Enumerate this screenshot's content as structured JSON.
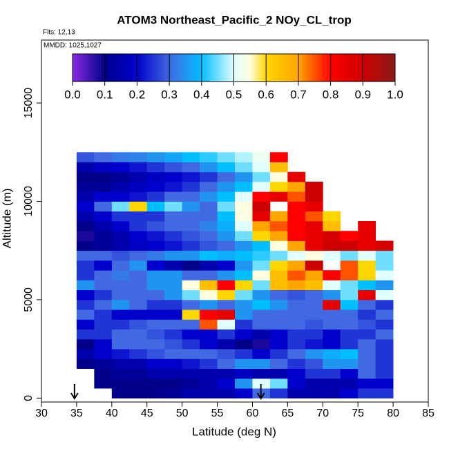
{
  "chart_data": {
    "type": "heatmap",
    "title": "ATOM3 Northeast_Pacific_2 NOy_CL_trop",
    "subtitle": "Flts: 12,13",
    "annotation": "MMDD: 1025,1027",
    "xlabel": "Latitude (deg N)",
    "ylabel": "Altitude (m)",
    "xlim": [
      30,
      85
    ],
    "ylim": [
      -200,
      18200
    ],
    "xticks": [
      30,
      35,
      40,
      45,
      50,
      55,
      60,
      65,
      70,
      75,
      80,
      85
    ],
    "yticks": [
      0,
      5000,
      10000,
      15000
    ],
    "xbins": [
      35,
      37.5,
      40,
      42.5,
      45,
      47.5,
      50,
      52.5,
      55,
      57.5,
      60,
      62.5,
      65,
      67.5,
      70,
      72.5,
      75,
      77.5,
      80
    ],
    "ybins": [
      0,
      500,
      1000,
      1500,
      2000,
      2500,
      3000,
      3500,
      4000,
      4500,
      5000,
      5500,
      6000,
      6500,
      7000,
      7500,
      8000,
      8500,
      9000,
      9500,
      10000,
      10500,
      11000,
      11500,
      12000,
      12500
    ],
    "values": [
      [
        null,
        null,
        0.1,
        0.1,
        0.1,
        0.12,
        0.15,
        0.15,
        0.15,
        0.2,
        0.3,
        0.25,
        0.15,
        0.15,
        0.15,
        0.2,
        0.25,
        0.25
      ],
      [
        null,
        0.1,
        0.1,
        0.1,
        0.1,
        0.1,
        0.12,
        0.15,
        0.2,
        0.35,
        0.5,
        0.45,
        0.2,
        0.15,
        0.15,
        0.15,
        0.2,
        0.2
      ],
      [
        null,
        0.1,
        0.12,
        0.12,
        0.15,
        0.15,
        0.15,
        0.15,
        0.15,
        0.18,
        0.15,
        0.15,
        0.2,
        0.25,
        0.25,
        0.2,
        0.3,
        0.25
      ],
      [
        0.1,
        0.12,
        0.15,
        0.15,
        0.2,
        0.2,
        0.22,
        0.25,
        0.3,
        0.35,
        0.35,
        0.3,
        0.25,
        0.28,
        0.35,
        0.35,
        0.3,
        0.25
      ],
      [
        0.15,
        0.2,
        0.22,
        0.25,
        0.28,
        0.3,
        0.3,
        0.3,
        0.28,
        0.25,
        0.2,
        0.25,
        0.3,
        0.35,
        0.38,
        0.4,
        0.3,
        0.25
      ],
      [
        0.1,
        0.2,
        0.3,
        0.3,
        0.3,
        0.28,
        0.25,
        0.2,
        0.15,
        0.1,
        0.08,
        0.2,
        0.25,
        0.22,
        0.2,
        0.25,
        0.3,
        0.25
      ],
      [
        0.25,
        0.25,
        0.3,
        0.3,
        0.28,
        0.25,
        0.2,
        0.2,
        0.25,
        0.2,
        0.15,
        0.2,
        0.25,
        0.25,
        0.2,
        0.25,
        0.25,
        0.3
      ],
      [
        0.2,
        0.25,
        0.25,
        0.28,
        0.3,
        0.3,
        0.3,
        0.75,
        0.5,
        0.25,
        0.3,
        0.3,
        0.3,
        0.28,
        0.3,
        0.3,
        0.28,
        0.25
      ],
      [
        0.3,
        0.25,
        0.2,
        0.2,
        0.2,
        0.2,
        0.6,
        0.8,
        0.85,
        0.35,
        0.3,
        0.3,
        0.3,
        0.3,
        0.3,
        0.3,
        0.25,
        0.3
      ],
      [
        0.25,
        0.3,
        0.35,
        0.3,
        0.25,
        0.25,
        0.3,
        0.35,
        0.3,
        0.35,
        0.4,
        0.35,
        0.3,
        0.3,
        0.85,
        0.4,
        0.3,
        0.25
      ],
      [
        0.2,
        0.25,
        0.3,
        0.3,
        0.3,
        0.35,
        0.45,
        0.55,
        0.6,
        0.45,
        0.35,
        0.3,
        0.28,
        0.3,
        0.35,
        0.45,
        0.85,
        0.5
      ],
      [
        0.35,
        0.3,
        0.3,
        0.3,
        0.35,
        0.35,
        0.55,
        0.65,
        0.8,
        0.6,
        0.45,
        0.65,
        0.7,
        0.65,
        0.5,
        0.45,
        0.4,
        0.35
      ],
      [
        0.25,
        0.3,
        0.32,
        0.3,
        0.35,
        0.35,
        0.3,
        0.3,
        0.35,
        0.4,
        0.55,
        0.65,
        0.75,
        0.7,
        0.8,
        0.75,
        0.6,
        0.5
      ],
      [
        0.25,
        0.2,
        0.3,
        0.35,
        0.2,
        0.15,
        0.1,
        0.15,
        0.2,
        0.35,
        0.45,
        0.6,
        0.7,
        0.9,
        null,
        0.75,
        0.6,
        0.45
      ],
      [
        0.3,
        0.3,
        0.28,
        0.3,
        0.32,
        0.35,
        0.35,
        0.4,
        0.38,
        0.4,
        0.42,
        0.45,
        0.5,
        0.55,
        0.5,
        0.45,
        0.5,
        0.45
      ],
      [
        0.1,
        0.12,
        0.15,
        0.18,
        0.2,
        0.22,
        0.25,
        0.28,
        0.3,
        0.35,
        0.4,
        0.55,
        0.7,
        0.85,
        0.9,
        0.9,
        0.85,
        0.88
      ],
      [
        0.08,
        0.12,
        0.15,
        0.2,
        0.22,
        0.25,
        0.28,
        0.3,
        0.35,
        0.45,
        0.6,
        0.7,
        0.8,
        0.85,
        0.88,
        0.8,
        0.85,
        null
      ],
      [
        0.1,
        0.15,
        0.2,
        0.25,
        0.28,
        0.3,
        0.3,
        0.33,
        0.38,
        0.5,
        0.7,
        0.75,
        0.8,
        0.85,
        0.65,
        null,
        0.85,
        null
      ],
      [
        0.15,
        0.2,
        0.25,
        0.25,
        0.25,
        0.3,
        0.3,
        0.3,
        0.4,
        0.55,
        0.85,
        0.7,
        0.8,
        0.75,
        0.6,
        null,
        null,
        null
      ],
      [
        0.2,
        0.3,
        0.45,
        0.6,
        0.4,
        0.45,
        0.35,
        0.3,
        0.45,
        0.55,
        0.9,
        null,
        0.8,
        0.85,
        null,
        null,
        null,
        null
      ],
      [
        0.15,
        0.2,
        0.2,
        0.22,
        0.25,
        0.3,
        0.3,
        0.35,
        0.4,
        0.5,
        0.8,
        0.85,
        0.75,
        0.9,
        null,
        null,
        null,
        null
      ],
      [
        0.12,
        0.12,
        0.15,
        0.18,
        0.2,
        0.22,
        0.25,
        0.3,
        0.35,
        0.4,
        0.5,
        0.6,
        0.7,
        0.9,
        null,
        null,
        null,
        null
      ],
      [
        0.1,
        0.1,
        0.12,
        0.15,
        0.18,
        0.2,
        0.22,
        0.25,
        0.3,
        0.35,
        0.45,
        0.55,
        0.85,
        null,
        null,
        null,
        null,
        null
      ],
      [
        0.15,
        0.18,
        0.2,
        0.22,
        0.25,
        0.28,
        0.3,
        0.35,
        0.4,
        0.45,
        0.5,
        0.65,
        null,
        null,
        null,
        null,
        null,
        null
      ],
      [
        0.28,
        0.3,
        0.32,
        0.33,
        0.35,
        0.37,
        0.4,
        0.42,
        0.45,
        0.48,
        0.52,
        0.8,
        null,
        null,
        null,
        null,
        null,
        null
      ]
    ],
    "colorscale": [
      [
        0,
        "#8a2be2"
      ],
      [
        0.1,
        "#00008b"
      ],
      [
        0.2,
        "#0000cd"
      ],
      [
        0.3,
        "#4169e1"
      ],
      [
        0.4,
        "#00bfff"
      ],
      [
        0.5,
        "#e0ffff"
      ],
      [
        0.55,
        "#ffffe0"
      ],
      [
        0.6,
        "#ffd700"
      ],
      [
        0.7,
        "#ffa500"
      ],
      [
        0.8,
        "#ff0000"
      ],
      [
        0.9,
        "#cd0000"
      ],
      [
        1.0,
        "#8b1a1a"
      ]
    ],
    "colorbar_ticks": [
      {
        "value": 0,
        "label": "0.0"
      },
      0.1,
      0.2,
      0.3,
      0.4,
      0.5,
      0.6,
      0.7,
      0.8,
      0.9,
      {
        "value": 1,
        "label": "1.0"
      }
    ],
    "arrows": [
      34.7,
      61.2
    ]
  }
}
